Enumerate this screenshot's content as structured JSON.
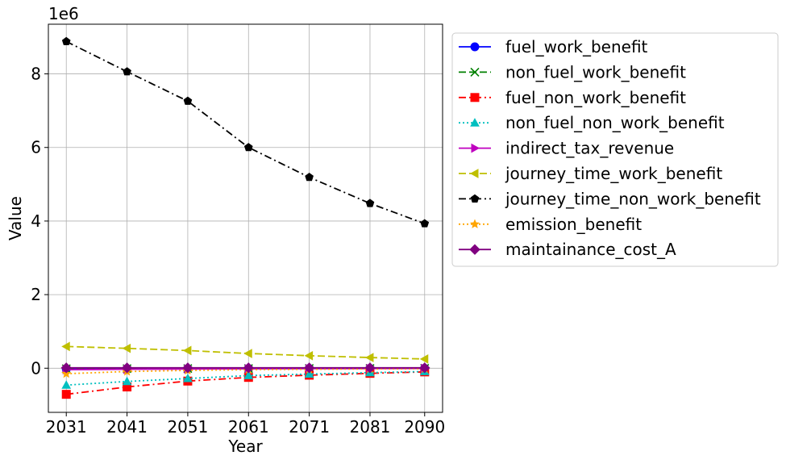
{
  "chart_data": {
    "type": "line",
    "title": "",
    "xlabel": "Year",
    "ylabel": "Value",
    "offset_label": "1e6",
    "x": [
      2031,
      2041,
      2051,
      2061,
      2071,
      2081,
      2090
    ],
    "x_tick_labels": [
      "2031",
      "2041",
      "2051",
      "2061",
      "2071",
      "2081",
      "2090"
    ],
    "y_ticks": [
      0,
      2000000,
      4000000,
      6000000,
      8000000
    ],
    "y_tick_labels": [
      "0",
      "2",
      "4",
      "6",
      "8"
    ],
    "ylim": [
      -1200000,
      9350000
    ],
    "grid": true,
    "legend_position": "outside-right",
    "series": [
      {
        "name": "fuel_work_benefit",
        "color": "#0000ff",
        "dash": "solid",
        "marker": "circle",
        "values": [
          -20000,
          -16000,
          -12000,
          -9000,
          -7000,
          -5000,
          -4000
        ]
      },
      {
        "name": "non_fuel_work_benefit",
        "color": "#008000",
        "dash": "dashed",
        "marker": "x",
        "values": [
          -15000,
          -12000,
          -10000,
          -8000,
          -6000,
          -5000,
          -4000
        ]
      },
      {
        "name": "fuel_non_work_benefit",
        "color": "#ff0000",
        "dash": "dashdot",
        "marker": "square",
        "values": [
          -710000,
          -510000,
          -350000,
          -250000,
          -190000,
          -140000,
          -100000
        ]
      },
      {
        "name": "non_fuel_non_work_benefit",
        "color": "#00bfbf",
        "dash": "dotted",
        "marker": "triangle-up",
        "values": [
          -460000,
          -360000,
          -280000,
          -200000,
          -160000,
          -120000,
          -90000
        ]
      },
      {
        "name": "indirect_tax_revenue",
        "color": "#bf00bf",
        "dash": "solid",
        "marker": "triangle-right",
        "values": [
          -40000,
          -30000,
          -22000,
          -16000,
          -12000,
          -9000,
          -7000
        ]
      },
      {
        "name": "journey_time_work_benefit",
        "color": "#bfbf00",
        "dash": "dashed",
        "marker": "triangle-left",
        "values": [
          590000,
          540000,
          480000,
          400000,
          340000,
          290000,
          250000
        ]
      },
      {
        "name": "journey_time_non_work_benefit",
        "color": "#000000",
        "dash": "dashdot",
        "marker": "pentagon",
        "values": [
          8880000,
          8060000,
          7260000,
          6000000,
          5190000,
          4480000,
          3930000
        ]
      },
      {
        "name": "emission_benefit",
        "color": "#ffa500",
        "dash": "dotted",
        "marker": "star",
        "values": [
          -150000,
          -90000,
          -60000,
          -40000,
          -30000,
          -20000,
          -15000
        ]
      },
      {
        "name": "maintainance_cost_A",
        "color": "#800080",
        "dash": "solid",
        "marker": "diamond",
        "values": [
          10000,
          10000,
          10000,
          10000,
          10000,
          10000,
          10000
        ]
      }
    ]
  }
}
